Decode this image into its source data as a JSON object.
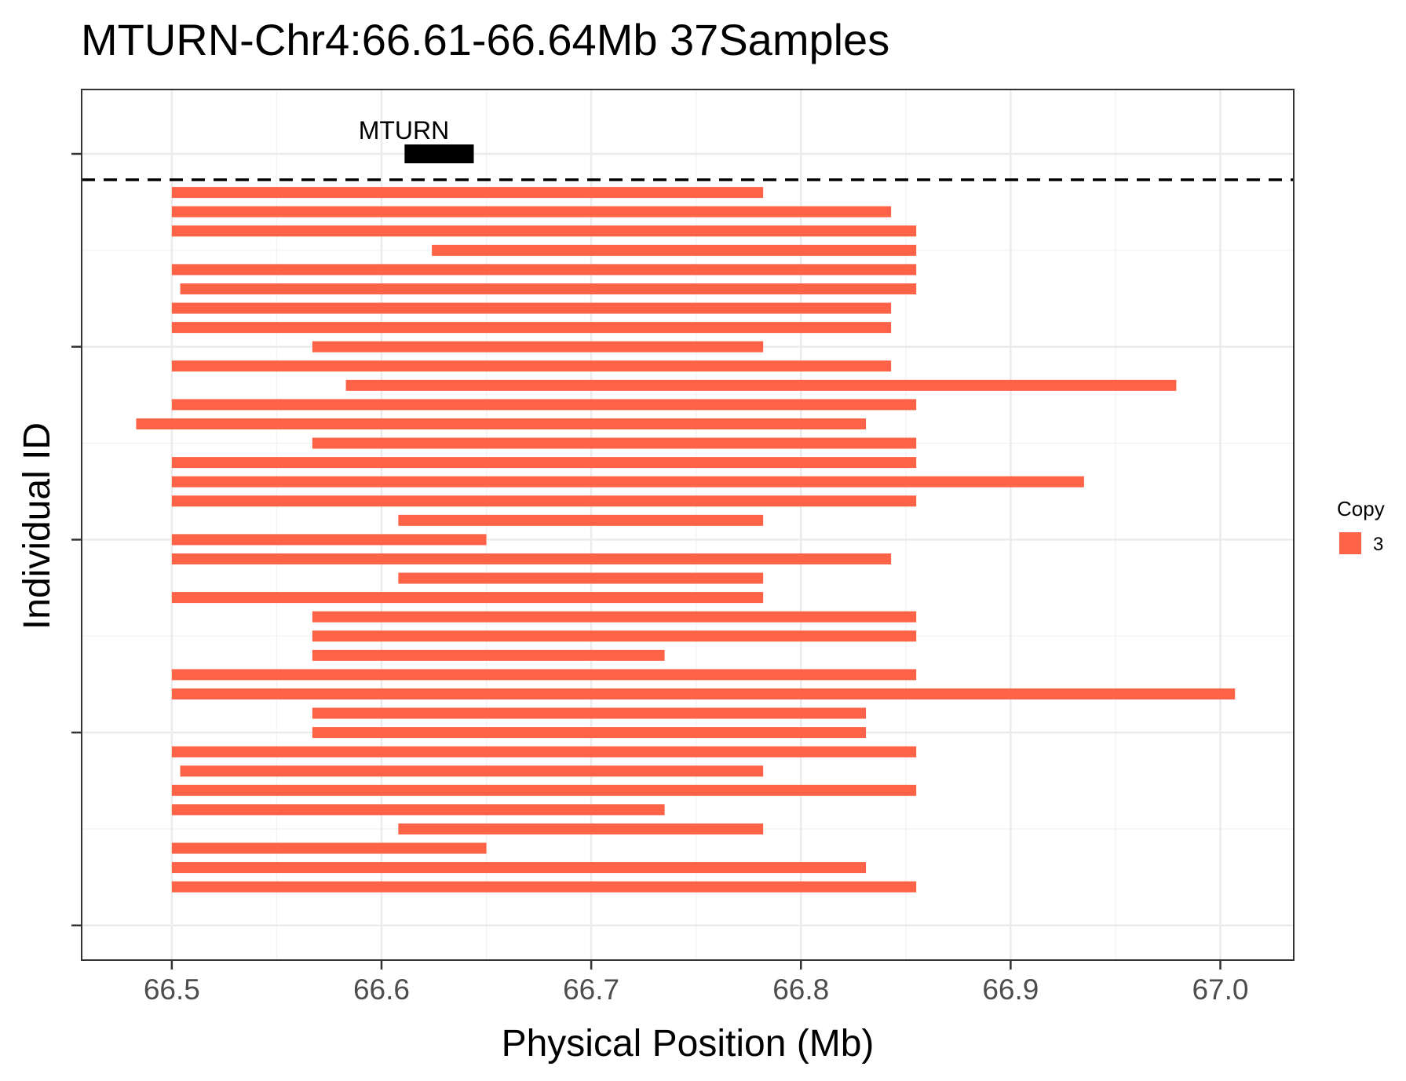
{
  "chart_data": {
    "type": "bar",
    "orientation": "horizontal-segments",
    "title": "MTURN-Chr4:66.61-66.64Mb 37Samples",
    "xlabel": "Physical Position (Mb)",
    "ylabel": "Individual ID",
    "xlim": [
      66.457,
      67.035
    ],
    "x_ticks": [
      "66.5",
      "66.6",
      "66.7",
      "66.8",
      "66.9",
      "67.0"
    ],
    "x_tick_values": [
      66.5,
      66.6,
      66.7,
      66.8,
      66.9,
      67.0
    ],
    "grid": true,
    "legend": {
      "title": "Copy",
      "position": "right",
      "entries": [
        {
          "label": "3",
          "color": "#FF6347"
        }
      ]
    },
    "gene": {
      "name": "MTURN",
      "start": 66.611,
      "end": 66.644,
      "color": "#000000"
    },
    "separator": "dashed",
    "segments": [
      {
        "start": 66.5,
        "end": 66.782
      },
      {
        "start": 66.5,
        "end": 66.843
      },
      {
        "start": 66.5,
        "end": 66.855
      },
      {
        "start": 66.624,
        "end": 66.855
      },
      {
        "start": 66.5,
        "end": 66.855
      },
      {
        "start": 66.504,
        "end": 66.855
      },
      {
        "start": 66.5,
        "end": 66.843
      },
      {
        "start": 66.5,
        "end": 66.843
      },
      {
        "start": 66.567,
        "end": 66.782
      },
      {
        "start": 66.5,
        "end": 66.843
      },
      {
        "start": 66.583,
        "end": 66.979
      },
      {
        "start": 66.5,
        "end": 66.855
      },
      {
        "start": 66.483,
        "end": 66.831
      },
      {
        "start": 66.567,
        "end": 66.855
      },
      {
        "start": 66.5,
        "end": 66.855
      },
      {
        "start": 66.5,
        "end": 66.935
      },
      {
        "start": 66.5,
        "end": 66.855
      },
      {
        "start": 66.608,
        "end": 66.782
      },
      {
        "start": 66.5,
        "end": 66.65
      },
      {
        "start": 66.5,
        "end": 66.843
      },
      {
        "start": 66.608,
        "end": 66.782
      },
      {
        "start": 66.5,
        "end": 66.782
      },
      {
        "start": 66.567,
        "end": 66.855
      },
      {
        "start": 66.567,
        "end": 66.855
      },
      {
        "start": 66.567,
        "end": 66.735
      },
      {
        "start": 66.5,
        "end": 66.855
      },
      {
        "start": 66.5,
        "end": 67.007
      },
      {
        "start": 66.567,
        "end": 66.831
      },
      {
        "start": 66.567,
        "end": 66.831
      },
      {
        "start": 66.5,
        "end": 66.855
      },
      {
        "start": 66.504,
        "end": 66.782
      },
      {
        "start": 66.5,
        "end": 66.855
      },
      {
        "start": 66.5,
        "end": 66.735
      },
      {
        "start": 66.608,
        "end": 66.782
      },
      {
        "start": 66.5,
        "end": 66.65
      },
      {
        "start": 66.5,
        "end": 66.831
      },
      {
        "start": 66.5,
        "end": 66.855
      }
    ],
    "segment_color": "#FF6347"
  }
}
